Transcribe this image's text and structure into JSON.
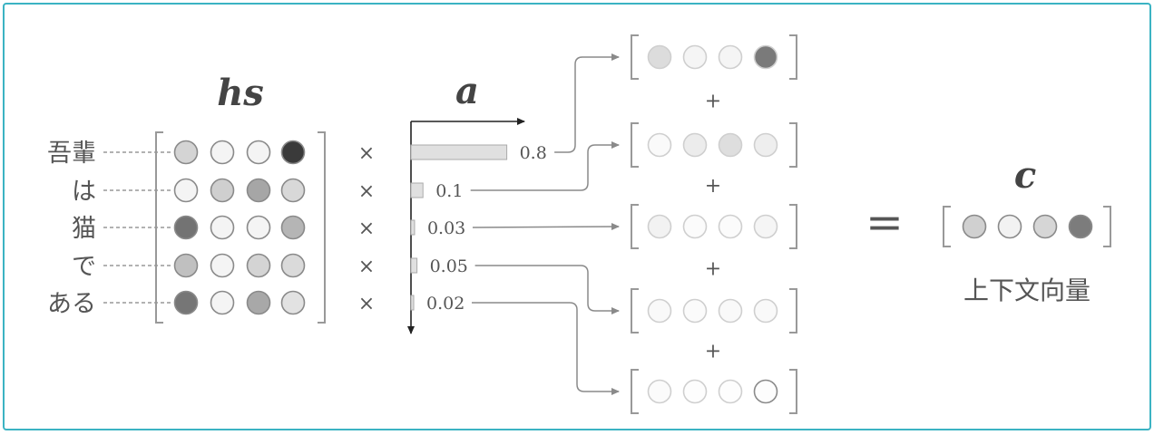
{
  "title_hs": "hs",
  "title_a": "a",
  "title_c": "c",
  "words": [
    "吾輩",
    "は",
    "猫",
    "で",
    "ある"
  ],
  "times_symbol": "×",
  "plus_symbol": "+",
  "equals_symbol": "=",
  "context_label": "上下文向量",
  "weights": [
    {
      "label": "0.8",
      "value": 0.8
    },
    {
      "label": "0.1",
      "value": 0.1
    },
    {
      "label": "0.03",
      "value": 0.03
    },
    {
      "label": "0.05",
      "value": 0.05
    },
    {
      "label": "0.02",
      "value": 0.02
    }
  ],
  "hs_colors": [
    [
      "#d4d4d4",
      "#f4f4f4",
      "#f4f4f4",
      "#3a3a3a"
    ],
    [
      "#f4f4f4",
      "#cfcfcf",
      "#a6a6a6",
      "#d8d8d8"
    ],
    [
      "#737373",
      "#f4f4f4",
      "#f4f4f4",
      "#b5b5b5"
    ],
    [
      "#c0c0c0",
      "#f4f4f4",
      "#d4d4d4",
      "#dadada"
    ],
    [
      "#767676",
      "#f4f4f4",
      "#a8a8a8",
      "#e2e2e2"
    ]
  ],
  "weighted_colors": [
    [
      "#dcdcdc",
      "#f5f5f5",
      "#f5f5f5",
      "#7a7a7a"
    ],
    [
      "#fafafa",
      "#ececec",
      "#dedede",
      "#eeeeee"
    ],
    [
      "#f2f2f2",
      "#fbfbfb",
      "#fbfbfb",
      "#f5f5f5"
    ],
    [
      "#f9f9f9",
      "#fbfbfb",
      "#f9f9f9",
      "#f9f9f9"
    ],
    [
      "#fbfbfb",
      "#fdfdfd",
      "#fdfdfd",
      "#fdfdfd"
    ]
  ],
  "context_colors": [
    "#d0d0d0",
    "#f2f2f2",
    "#d6d6d6",
    "#7c7c7c"
  ],
  "frame_color": "#3bb3c3"
}
